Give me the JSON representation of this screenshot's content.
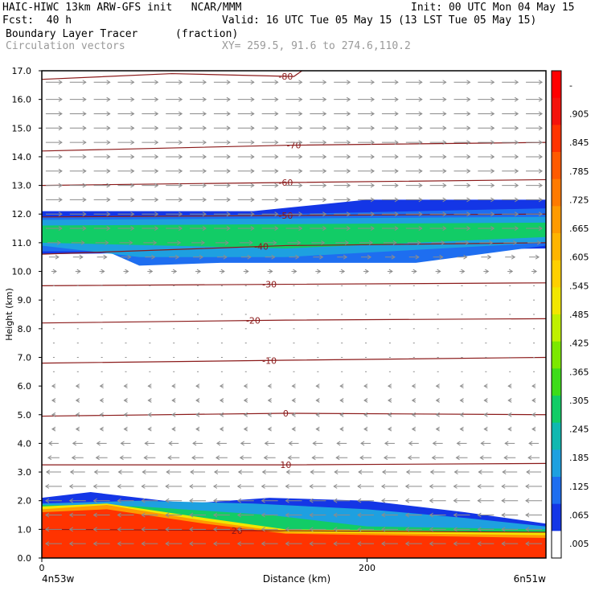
{
  "header": {
    "model_line": "HAIC-HIWC 13km ARW-GFS init   NCAR/MMM",
    "init": "Init: 00 UTC Mon 04 May 15",
    "fcst": "Fcst:  40 h",
    "valid": "Valid: 16 UTC Tue 05 May 15 (13 LST Tue 05 May 15)",
    "field": "Boundary Layer Tracer",
    "units": "(fraction)",
    "vectors": "Circulation vectors",
    "xy": "XY= 259.5, 91.6 to 274.6,110.2"
  },
  "colors": {
    "isotherm": "#8b1a1a",
    "vector": "#8c8c8c",
    "frame": "#000000"
  },
  "chart_data": {
    "type": "heatmap",
    "title": "Boundary Layer Tracer",
    "units": "(fraction)",
    "xlabel": "Distance (km)",
    "ylabel": "Height (km)",
    "xlim": [
      0,
      310
    ],
    "ylim": [
      0,
      17
    ],
    "x_ticks": [
      0,
      200
    ],
    "x_tick_labels": [
      "0",
      "200"
    ],
    "x_end_labels": [
      "4n53w",
      "6n51w"
    ],
    "y_ticks": [
      0,
      1,
      2,
      3,
      4,
      5,
      6,
      7,
      8,
      9,
      10,
      11,
      12,
      13,
      14,
      15,
      16,
      17
    ],
    "y_tick_labels": [
      "0.0",
      "1.0",
      "2.0",
      "3.0",
      "4.0",
      "5.0",
      "6.0",
      "7.0",
      "8.0",
      "9.0",
      "10.0",
      "11.0",
      "12.0",
      "13.0",
      "14.0",
      "15.0",
      "16.0",
      "17.0"
    ],
    "colorbar": {
      "labels": [
        "-",
        ".905",
        ".845",
        ".785",
        ".725",
        ".665",
        ".605",
        ".545",
        ".485",
        ".425",
        ".365",
        ".305",
        ".245",
        ".185",
        ".125",
        ".065",
        ".005"
      ],
      "colors": [
        "#ff0000",
        "#f4130c",
        "#ff3300",
        "#ff5a00",
        "#ff7a00",
        "#ff9a00",
        "#ffb400",
        "#ffd000",
        "#f2e600",
        "#bff000",
        "#7ce800",
        "#3ddc1a",
        "#12cc66",
        "#10b8b0",
        "#1ea0e0",
        "#1e6ef0",
        "#1436e6",
        "#ffffff"
      ]
    },
    "isotherms": [
      {
        "label": "-80",
        "label_x": 150,
        "heights": [
          [
            0,
            16.7
          ],
          [
            80,
            16.9
          ],
          [
            155,
            16.8
          ],
          [
            160,
            17.0
          ]
        ]
      },
      {
        "label": "-70",
        "label_x": 155,
        "heights": [
          [
            0,
            14.2
          ],
          [
            150,
            14.4
          ],
          [
            310,
            14.5
          ]
        ]
      },
      {
        "label": "-60",
        "label_x": 150,
        "heights": [
          [
            0,
            13.0
          ],
          [
            150,
            13.1
          ],
          [
            310,
            13.2
          ]
        ]
      },
      {
        "label": "-50",
        "label_x": 150,
        "heights": [
          [
            0,
            11.9
          ],
          [
            150,
            11.95
          ],
          [
            310,
            12.0
          ]
        ]
      },
      {
        "label": "-40",
        "label_x": 135,
        "heights": [
          [
            0,
            10.6
          ],
          [
            150,
            10.9
          ],
          [
            310,
            11.0
          ]
        ]
      },
      {
        "label": "-30",
        "label_x": 140,
        "heights": [
          [
            0,
            9.5
          ],
          [
            150,
            9.55
          ],
          [
            310,
            9.6
          ]
        ]
      },
      {
        "label": "-20",
        "label_x": 130,
        "heights": [
          [
            0,
            8.2
          ],
          [
            150,
            8.3
          ],
          [
            310,
            8.35
          ]
        ]
      },
      {
        "label": "-10",
        "label_x": 140,
        "heights": [
          [
            0,
            6.8
          ],
          [
            150,
            6.9
          ],
          [
            310,
            7.0
          ]
        ]
      },
      {
        "label": "0",
        "label_x": 150,
        "heights": [
          [
            0,
            4.95
          ],
          [
            150,
            5.05
          ],
          [
            310,
            5.0
          ]
        ]
      },
      {
        "label": "10",
        "label_x": 150,
        "heights": [
          [
            0,
            3.25
          ],
          [
            150,
            3.25
          ],
          [
            310,
            3.3
          ]
        ]
      },
      {
        "label": "20",
        "label_x": 120,
        "heights": [
          [
            0,
            1.0
          ],
          [
            150,
            0.95
          ],
          [
            310,
            0.9
          ]
        ]
      }
    ],
    "tracer_layers": [
      {
        "level": 0.005,
        "color": "#1436e6",
        "base": [
          [
            0,
            10.6
          ],
          [
            310,
            10.8
          ]
        ],
        "top": [
          [
            0,
            12.1
          ],
          [
            130,
            12.1
          ],
          [
            200,
            12.5
          ],
          [
            310,
            12.5
          ]
        ]
      },
      {
        "level": 0.065,
        "color": "#1e6ef0",
        "base": [
          [
            0,
            10.7
          ],
          [
            40,
            10.7
          ],
          [
            60,
            10.2
          ],
          [
            110,
            10.3
          ],
          [
            230,
            10.3
          ],
          [
            310,
            10.9
          ]
        ],
        "top": [
          [
            0,
            11.9
          ],
          [
            150,
            12.0
          ],
          [
            310,
            12.2
          ]
        ]
      },
      {
        "level": 0.125,
        "color": "#1ea0e0",
        "base": [
          [
            0,
            10.9
          ],
          [
            60,
            10.5
          ],
          [
            150,
            10.5
          ],
          [
            310,
            11.0
          ]
        ],
        "top": [
          [
            0,
            11.8
          ],
          [
            310,
            11.9
          ]
        ]
      },
      {
        "level": 0.245,
        "color": "#12cc66",
        "base": [
          [
            0,
            11.0
          ],
          [
            150,
            10.8
          ],
          [
            310,
            11.2
          ]
        ],
        "top": [
          [
            0,
            11.6
          ],
          [
            310,
            11.7
          ]
        ]
      },
      {
        "level": 0.005,
        "color": "#1436e6",
        "base": [
          [
            0,
            0
          ],
          [
            310,
            0
          ]
        ],
        "top": [
          [
            0,
            2.1
          ],
          [
            30,
            2.3
          ],
          [
            90,
            1.9
          ],
          [
            140,
            2.1
          ],
          [
            200,
            2.0
          ],
          [
            260,
            1.6
          ],
          [
            310,
            1.2
          ]
        ]
      },
      {
        "level": 0.125,
        "color": "#1ea0e0",
        "base": [
          [
            0,
            0
          ],
          [
            310,
            0
          ]
        ],
        "top": [
          [
            0,
            1.9
          ],
          [
            60,
            2.0
          ],
          [
            130,
            1.9
          ],
          [
            200,
            1.7
          ],
          [
            260,
            1.4
          ],
          [
            310,
            1.1
          ]
        ]
      },
      {
        "level": 0.245,
        "color": "#12cc66",
        "base": [
          [
            0,
            0
          ],
          [
            310,
            0
          ]
        ],
        "top": [
          [
            0,
            1.85
          ],
          [
            60,
            1.8
          ],
          [
            140,
            1.5
          ],
          [
            200,
            1.1
          ],
          [
            310,
            1.0
          ]
        ]
      },
      {
        "level": 0.425,
        "color": "#f2e600",
        "base": [
          [
            0,
            0
          ],
          [
            310,
            0
          ]
        ],
        "top": [
          [
            0,
            1.8
          ],
          [
            40,
            1.9
          ],
          [
            100,
            1.4
          ],
          [
            150,
            1.0
          ],
          [
            310,
            0.9
          ]
        ]
      },
      {
        "level": 0.605,
        "color": "#ff9a00",
        "base": [
          [
            0,
            0
          ],
          [
            310,
            0
          ]
        ],
        "top": [
          [
            0,
            1.7
          ],
          [
            40,
            1.85
          ],
          [
            100,
            1.3
          ],
          [
            150,
            0.9
          ],
          [
            310,
            0.8
          ]
        ]
      },
      {
        "level": 0.785,
        "color": "#ff3300",
        "base": [
          [
            0,
            0
          ],
          [
            310,
            0
          ]
        ],
        "top": [
          [
            0,
            1.6
          ],
          [
            40,
            1.7
          ],
          [
            100,
            1.2
          ],
          [
            150,
            0.85
          ],
          [
            310,
            0.7
          ]
        ]
      }
    ],
    "vector_rows": [
      {
        "height": 16.6,
        "u": 1.0
      },
      {
        "height": 16.0,
        "u": 1.0
      },
      {
        "height": 15.5,
        "u": 1.0
      },
      {
        "height": 15.0,
        "u": 1.0
      },
      {
        "height": 14.5,
        "u": 1.0
      },
      {
        "height": 14.0,
        "u": 1.0
      },
      {
        "height": 13.5,
        "u": 1.0
      },
      {
        "height": 13.0,
        "u": 1.0
      },
      {
        "height": 12.5,
        "u": 1.0
      },
      {
        "height": 12.0,
        "u": 1.0
      },
      {
        "height": 11.5,
        "u": 1.0
      },
      {
        "height": 11.0,
        "u": 0.8
      },
      {
        "height": 10.5,
        "u": 0.6
      },
      {
        "height": 10.0,
        "u": 0.3
      },
      {
        "height": 9.5,
        "u": 0.1
      },
      {
        "height": 9.0,
        "u": 0.1
      },
      {
        "height": 8.5,
        "u": 0.1
      },
      {
        "height": 8.0,
        "u": 0.1
      },
      {
        "height": 7.5,
        "u": 0.1
      },
      {
        "height": 7.0,
        "u": 0.1
      },
      {
        "height": 6.5,
        "u": -0.1
      },
      {
        "height": 6.0,
        "u": -0.2
      },
      {
        "height": 5.5,
        "u": -0.2
      },
      {
        "height": 5.0,
        "u": -0.2
      },
      {
        "height": 4.5,
        "u": -0.2
      },
      {
        "height": 4.0,
        "u": -0.6
      },
      {
        "height": 3.5,
        "u": -0.7
      },
      {
        "height": 3.0,
        "u": -0.9
      },
      {
        "height": 2.5,
        "u": -1.0
      },
      {
        "height": 2.0,
        "u": -1.0
      },
      {
        "height": 1.5,
        "u": -1.0
      },
      {
        "height": 1.0,
        "u": -1.0
      },
      {
        "height": 0.5,
        "u": -1.0
      }
    ]
  }
}
